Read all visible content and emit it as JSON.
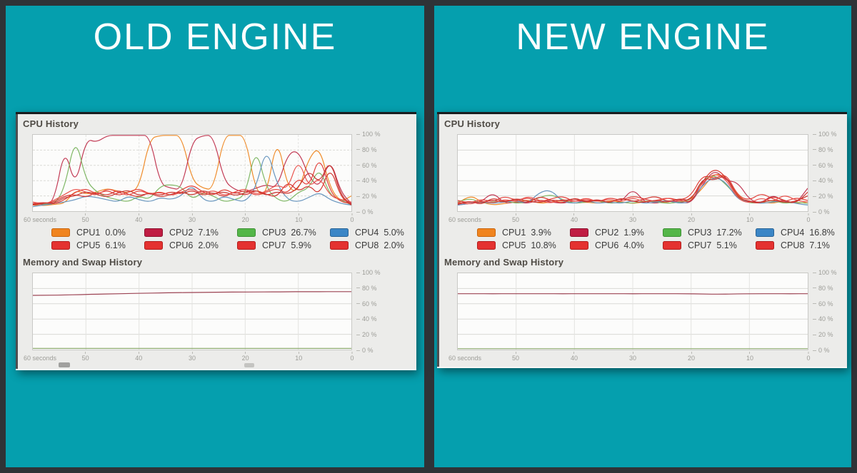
{
  "frame": {
    "background": "#2f3337",
    "panel_color": "#059fae",
    "window_bg": "#ececea"
  },
  "panels": [
    {
      "title": "OLD ENGINE",
      "window": {
        "cpu_section_label": "CPU History",
        "mem_section_label": "Memory and Swap History",
        "legend": [
          {
            "label": "CPU1",
            "value": "0.0%",
            "color": "#f0841f",
            "border": "#c9660e"
          },
          {
            "label": "CPU2",
            "value": "7.1%",
            "color": "#c01d43",
            "border": "#8d1430"
          },
          {
            "label": "CPU3",
            "value": "26.7%",
            "color": "#54b648",
            "border": "#3e9136"
          },
          {
            "label": "CPU4",
            "value": "5.0%",
            "color": "#3b86c6",
            "border": "#2a6496"
          },
          {
            "label": "CPU5",
            "value": "6.1%",
            "color": "#e43230",
            "border": "#b21d1c"
          },
          {
            "label": "CPU6",
            "value": "2.0%",
            "color": "#e43230",
            "border": "#b21d1c"
          },
          {
            "label": "CPU7",
            "value": "5.9%",
            "color": "#e43230",
            "border": "#b21d1c"
          },
          {
            "label": "CPU8",
            "value": "2.0%",
            "color": "#e43230",
            "border": "#b21d1c"
          }
        ]
      }
    },
    {
      "title": "NEW ENGINE",
      "window": {
        "cpu_section_label": "CPU History",
        "mem_section_label": "Memory and Swap History",
        "legend": [
          {
            "label": "CPU1",
            "value": "3.9%",
            "color": "#f0841f",
            "border": "#c9660e"
          },
          {
            "label": "CPU2",
            "value": "1.9%",
            "color": "#c01d43",
            "border": "#8d1430"
          },
          {
            "label": "CPU3",
            "value": "17.2%",
            "color": "#54b648",
            "border": "#3e9136"
          },
          {
            "label": "CPU4",
            "value": "16.8%",
            "color": "#3b86c6",
            "border": "#2a6496"
          },
          {
            "label": "CPU5",
            "value": "10.8%",
            "color": "#e43230",
            "border": "#b21d1c"
          },
          {
            "label": "CPU6",
            "value": "4.0%",
            "color": "#e43230",
            "border": "#b21d1c"
          },
          {
            "label": "CPU7",
            "value": "5.1%",
            "color": "#e43230",
            "border": "#b21d1c"
          },
          {
            "label": "CPU8",
            "value": "7.1%",
            "color": "#e43230",
            "border": "#b21d1c"
          }
        ]
      }
    }
  ],
  "chart_data": [
    {
      "id": "old-cpu",
      "type": "line",
      "title": "CPU History",
      "x_range_seconds": [
        60,
        0
      ],
      "ylim": [
        0,
        100
      ],
      "grid_dashed": true,
      "legend_position": "below",
      "x_start_label": "60 seconds",
      "xticks": [
        {
          "t": 50,
          "label": "50"
        },
        {
          "t": 40,
          "label": "40"
        },
        {
          "t": 30,
          "label": "30"
        },
        {
          "t": 20,
          "label": "20"
        },
        {
          "t": 10,
          "label": "10"
        },
        {
          "t": 0,
          "label": "0"
        }
      ],
      "yticks": [
        {
          "v": 100,
          "label": "100 %"
        },
        {
          "v": 80,
          "label": "80 %"
        },
        {
          "v": 60,
          "label": "60 %"
        },
        {
          "v": 40,
          "label": "40 %"
        },
        {
          "v": 20,
          "label": "20 %"
        },
        {
          "v": 0,
          "label": "0 %"
        }
      ],
      "series": [
        {
          "name": "CPU1",
          "color": "#ef8b29",
          "values": [
            8,
            7,
            9,
            10,
            28,
            22,
            25,
            30,
            26,
            24,
            30,
            95,
            100,
            100,
            100,
            40,
            30,
            28,
            100,
            100,
            100,
            25,
            20,
            100,
            30,
            25,
            70,
            85,
            30,
            12,
            20
          ]
        },
        {
          "name": "CPU2",
          "color": "#c23a54",
          "values": [
            10,
            8,
            12,
            85,
            30,
            95,
            90,
            100,
            100,
            100,
            100,
            100,
            35,
            30,
            28,
            92,
            100,
            100,
            40,
            28,
            25,
            30,
            35,
            30,
            75,
            80,
            45,
            30,
            70,
            25,
            10
          ]
        },
        {
          "name": "CPU3",
          "color": "#7fb765",
          "values": [
            9,
            10,
            8,
            30,
            100,
            40,
            25,
            18,
            15,
            12,
            20,
            15,
            33,
            35,
            32,
            15,
            25,
            20,
            12,
            15,
            20,
            85,
            30,
            15,
            12,
            25,
            30,
            58,
            20,
            15,
            8
          ]
        },
        {
          "name": "CPU4",
          "color": "#6694bd",
          "values": [
            6,
            8,
            10,
            12,
            15,
            20,
            18,
            15,
            12,
            20,
            15,
            12,
            18,
            15,
            20,
            35,
            15,
            12,
            20,
            15,
            12,
            30,
            85,
            35,
            15,
            12,
            18,
            25,
            15,
            10,
            8
          ]
        },
        {
          "name": "CPU5",
          "color": "#e2403a",
          "values": [
            10,
            12,
            9,
            15,
            25,
            30,
            22,
            28,
            20,
            25,
            30,
            22,
            25,
            20,
            28,
            35,
            25,
            20,
            30,
            22,
            28,
            20,
            25,
            30,
            22,
            45,
            30,
            75,
            25,
            12,
            10
          ]
        },
        {
          "name": "CPU6",
          "color": "#d33631",
          "values": [
            8,
            10,
            12,
            20,
            22,
            18,
            25,
            20,
            28,
            22,
            18,
            25,
            20,
            26,
            22,
            28,
            20,
            25,
            18,
            26,
            20,
            28,
            22,
            18,
            40,
            25,
            35,
            20,
            60,
            18,
            8
          ]
        },
        {
          "name": "CPU7",
          "color": "#ea534d",
          "values": [
            12,
            9,
            14,
            22,
            30,
            25,
            20,
            30,
            25,
            20,
            28,
            22,
            26,
            20,
            25,
            30,
            22,
            28,
            20,
            25,
            30,
            22,
            26,
            35,
            28,
            70,
            30,
            45,
            20,
            15,
            12
          ]
        },
        {
          "name": "CPU8",
          "color": "#c93732",
          "values": [
            9,
            11,
            10,
            18,
            20,
            26,
            22,
            18,
            24,
            28,
            20,
            24,
            18,
            22,
            26,
            20,
            28,
            22,
            26,
            20,
            24,
            28,
            20,
            26,
            22,
            30,
            55,
            35,
            70,
            20,
            9
          ]
        }
      ]
    },
    {
      "id": "old-mem",
      "type": "line",
      "title": "Memory and Swap History",
      "x_range_seconds": [
        60,
        0
      ],
      "ylim": [
        0,
        100
      ],
      "grid_dashed": false,
      "legend_position": "below-cropped",
      "x_start_label": "60 seconds",
      "xticks": [
        {
          "t": 50,
          "label": "50"
        },
        {
          "t": 40,
          "label": "40"
        },
        {
          "t": 30,
          "label": "30"
        },
        {
          "t": 20,
          "label": "20"
        },
        {
          "t": 10,
          "label": "10"
        },
        {
          "t": 0,
          "label": "0"
        }
      ],
      "yticks": [
        {
          "v": 100,
          "label": "100 %"
        },
        {
          "v": 80,
          "label": "80 %"
        },
        {
          "v": 60,
          "label": "60 %"
        },
        {
          "v": 40,
          "label": "40 %"
        },
        {
          "v": 20,
          "label": "20 %"
        },
        {
          "v": 0,
          "label": "0 %"
        }
      ],
      "series": [
        {
          "name": "Memory",
          "color": "#9c4353",
          "values": [
            71,
            71.2,
            71.5,
            72,
            72.6,
            73,
            73.4,
            73.8,
            74.2,
            74.5,
            74.8,
            75,
            75.2,
            75.4,
            75.5,
            75.6,
            75.7,
            75.8,
            75.8,
            75.9,
            75.9
          ]
        },
        {
          "name": "Swap",
          "color": "#8fad72",
          "values": [
            1.5,
            1.5,
            1.5,
            1.5,
            1.5,
            1.5,
            1.5,
            1.5,
            1.5,
            1.5,
            1.5,
            1.5,
            1.5,
            1.5,
            1.5,
            1.5,
            1.5,
            1.5,
            1.5,
            1.5,
            1.5
          ]
        }
      ]
    },
    {
      "id": "new-cpu",
      "type": "line",
      "title": "CPU History",
      "x_range_seconds": [
        60,
        0
      ],
      "ylim": [
        0,
        100
      ],
      "grid_dashed": false,
      "legend_position": "below",
      "x_start_label": "60 seconds",
      "xticks": [
        {
          "t": 50,
          "label": "50"
        },
        {
          "t": 40,
          "label": "40"
        },
        {
          "t": 30,
          "label": "30"
        },
        {
          "t": 20,
          "label": "20"
        },
        {
          "t": 10,
          "label": "10"
        },
        {
          "t": 0,
          "label": "0"
        }
      ],
      "yticks": [
        {
          "v": 100,
          "label": "100 %"
        },
        {
          "v": 80,
          "label": "80 %"
        },
        {
          "v": 60,
          "label": "60 %"
        },
        {
          "v": 40,
          "label": "40 %"
        },
        {
          "v": 20,
          "label": "20 %"
        },
        {
          "v": 0,
          "label": "0 %"
        }
      ],
      "series": [
        {
          "name": "CPU1",
          "color": "#ef8b29",
          "values": [
            10,
            22,
            12,
            8,
            10,
            12,
            15,
            10,
            12,
            14,
            10,
            12,
            10,
            14,
            12,
            10,
            12,
            14,
            10,
            12,
            15,
            30,
            50,
            45,
            20,
            10,
            12,
            10,
            14,
            10,
            12
          ]
        },
        {
          "name": "CPU2",
          "color": "#c23a54",
          "values": [
            8,
            10,
            12,
            25,
            10,
            12,
            10,
            15,
            12,
            10,
            14,
            12,
            15,
            10,
            12,
            30,
            12,
            10,
            14,
            12,
            10,
            35,
            55,
            40,
            38,
            15,
            10,
            22,
            12,
            10,
            30
          ]
        },
        {
          "name": "CPU3",
          "color": "#7fb765",
          "values": [
            12,
            18,
            10,
            12,
            14,
            10,
            12,
            18,
            22,
            15,
            10,
            12,
            14,
            10,
            12,
            10,
            14,
            12,
            10,
            12,
            14,
            42,
            48,
            35,
            18,
            10,
            12,
            14,
            10,
            12,
            10
          ]
        },
        {
          "name": "CPU4",
          "color": "#6694bd",
          "values": [
            8,
            10,
            12,
            10,
            12,
            14,
            10,
            25,
            28,
            12,
            10,
            14,
            10,
            12,
            10,
            14,
            10,
            12,
            14,
            10,
            12,
            35,
            45,
            38,
            15,
            12,
            10,
            12,
            14,
            10,
            8
          ]
        },
        {
          "name": "CPU5",
          "color": "#e2403a",
          "values": [
            14,
            10,
            16,
            12,
            20,
            14,
            18,
            12,
            16,
            20,
            12,
            16,
            12,
            18,
            14,
            20,
            16,
            12,
            18,
            14,
            20,
            48,
            42,
            50,
            20,
            14,
            24,
            16,
            12,
            18,
            14
          ]
        },
        {
          "name": "CPU6",
          "color": "#d33631",
          "values": [
            10,
            14,
            8,
            18,
            12,
            16,
            10,
            20,
            14,
            10,
            18,
            12,
            16,
            10,
            18,
            12,
            16,
            20,
            12,
            16,
            10,
            40,
            57,
            45,
            18,
            12,
            10,
            20,
            14,
            10,
            25
          ]
        },
        {
          "name": "CPU7",
          "color": "#ea534d",
          "values": [
            12,
            8,
            14,
            10,
            16,
            12,
            20,
            14,
            10,
            16,
            12,
            18,
            12,
            16,
            12,
            18,
            12,
            14,
            18,
            12,
            16,
            38,
            50,
            42,
            16,
            10,
            18,
            12,
            22,
            14,
            12
          ]
        },
        {
          "name": "CPU8",
          "color": "#c93732",
          "values": [
            9,
            13,
            11,
            15,
            11,
            17,
            13,
            11,
            15,
            13,
            17,
            11,
            15,
            11,
            17,
            13,
            11,
            15,
            11,
            17,
            13,
            44,
            40,
            48,
            17,
            13,
            11,
            15,
            11,
            13,
            20
          ]
        }
      ]
    },
    {
      "id": "new-mem",
      "type": "line",
      "title": "Memory and Swap History",
      "x_range_seconds": [
        60,
        0
      ],
      "ylim": [
        0,
        100
      ],
      "grid_dashed": false,
      "legend_position": "none-visible",
      "x_start_label": "60 seconds",
      "xticks": [
        {
          "t": 50,
          "label": "50"
        },
        {
          "t": 40,
          "label": "40"
        },
        {
          "t": 30,
          "label": "30"
        },
        {
          "t": 20,
          "label": "20"
        },
        {
          "t": 10,
          "label": "10"
        },
        {
          "t": 0,
          "label": "0"
        }
      ],
      "yticks": [
        {
          "v": 100,
          "label": "100 %"
        },
        {
          "v": 80,
          "label": "80 %"
        },
        {
          "v": 60,
          "label": "60 %"
        },
        {
          "v": 40,
          "label": "40 %"
        },
        {
          "v": 20,
          "label": "20 %"
        },
        {
          "v": 0,
          "label": "0 %"
        }
      ],
      "series": [
        {
          "name": "Memory",
          "color": "#9c4353",
          "values": [
            73.2,
            73.2,
            73.1,
            73.2,
            73.2,
            73.2,
            73.1,
            73.2,
            73.2,
            73.2,
            73.1,
            73.2,
            73.2,
            73.2,
            72.8,
            72.5,
            73,
            73.2,
            73.2,
            73.1,
            73.2
          ]
        },
        {
          "name": "Swap",
          "color": "#8fad72",
          "values": [
            1.2,
            1.2,
            1.2,
            1.2,
            1.2,
            1.2,
            1.2,
            1.2,
            1.2,
            1.2,
            1.2,
            1.2,
            1.2,
            1.2,
            1.2,
            1.2,
            1.2,
            1.2,
            1.2,
            1.2,
            1.2
          ]
        }
      ]
    }
  ]
}
